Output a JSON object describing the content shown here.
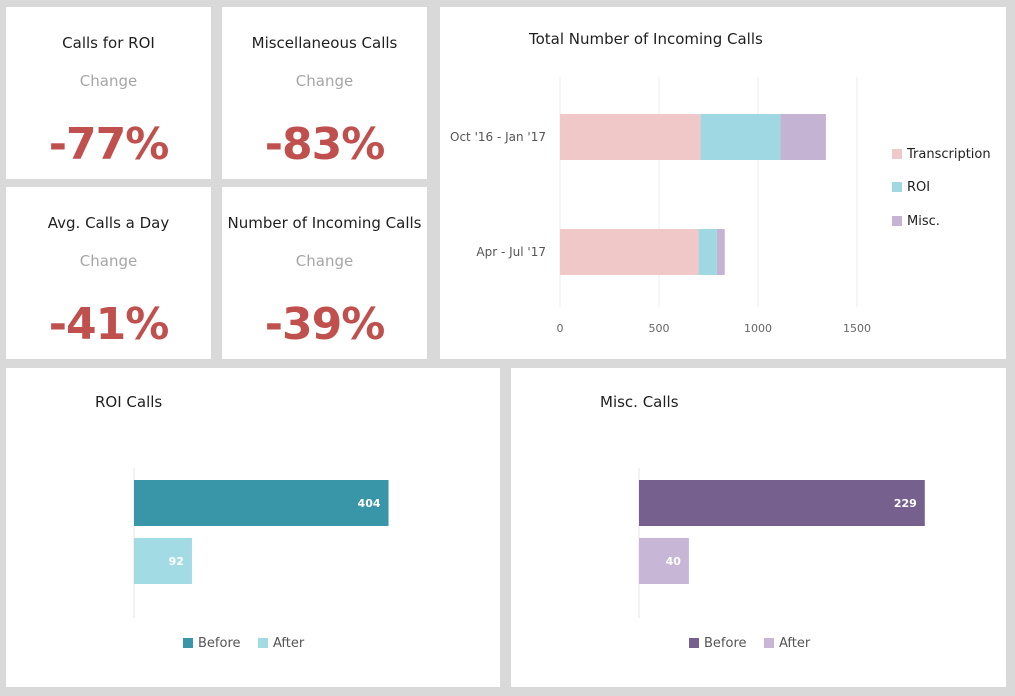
{
  "kpis": [
    {
      "title": "Calls for ROI",
      "sub": "Change",
      "value": "-77%"
    },
    {
      "title": "Miscellaneous Calls",
      "sub": "Change",
      "value": "-83%"
    },
    {
      "title": "Avg. Calls a Day",
      "sub": "Change",
      "value": "-41%"
    },
    {
      "title": "Number of Incoming Calls",
      "sub": "Change",
      "value": "-39%"
    }
  ],
  "colors": {
    "kpi_value": "#c0504d",
    "transcription": "#f0c8c8",
    "roi": "#9fd7e3",
    "misc": "#c5b3d4",
    "roi_before": "#3896a8",
    "roi_after": "#a3dbe5",
    "misc_before": "#76618e",
    "misc_after": "#c7b6d6"
  },
  "chart_data": [
    {
      "type": "bar",
      "orientation": "horizontal",
      "stacked": true,
      "title": "Total Number of Incoming Calls",
      "categories": [
        "Oct '16 - Jan '17",
        "Apr - Jul '17"
      ],
      "series": [
        {
          "name": "Transcription",
          "values": [
            710,
            700
          ]
        },
        {
          "name": "ROI",
          "values": [
            404,
            92
          ]
        },
        {
          "name": "Misc.",
          "values": [
            229,
            40
          ]
        }
      ],
      "xlim": [
        0,
        1500
      ],
      "xticks": [
        "0",
        "500",
        "1000",
        "1500"
      ],
      "grid": true,
      "legend": "right"
    },
    {
      "type": "bar",
      "orientation": "horizontal",
      "title": "ROI Calls",
      "categories": [
        "Before",
        "After"
      ],
      "values": [
        404,
        92
      ],
      "labels": [
        "404",
        "92"
      ],
      "xlim": [
        0,
        500
      ],
      "legend": [
        "Before",
        "After"
      ],
      "legend_position": "bottom"
    },
    {
      "type": "bar",
      "orientation": "horizontal",
      "title": "Misc. Calls",
      "categories": [
        "Before",
        "After"
      ],
      "values": [
        229,
        40
      ],
      "labels": [
        "229",
        "40"
      ],
      "xlim": [
        0,
        250
      ],
      "legend": [
        "Before",
        "After"
      ],
      "legend_position": "bottom"
    }
  ]
}
